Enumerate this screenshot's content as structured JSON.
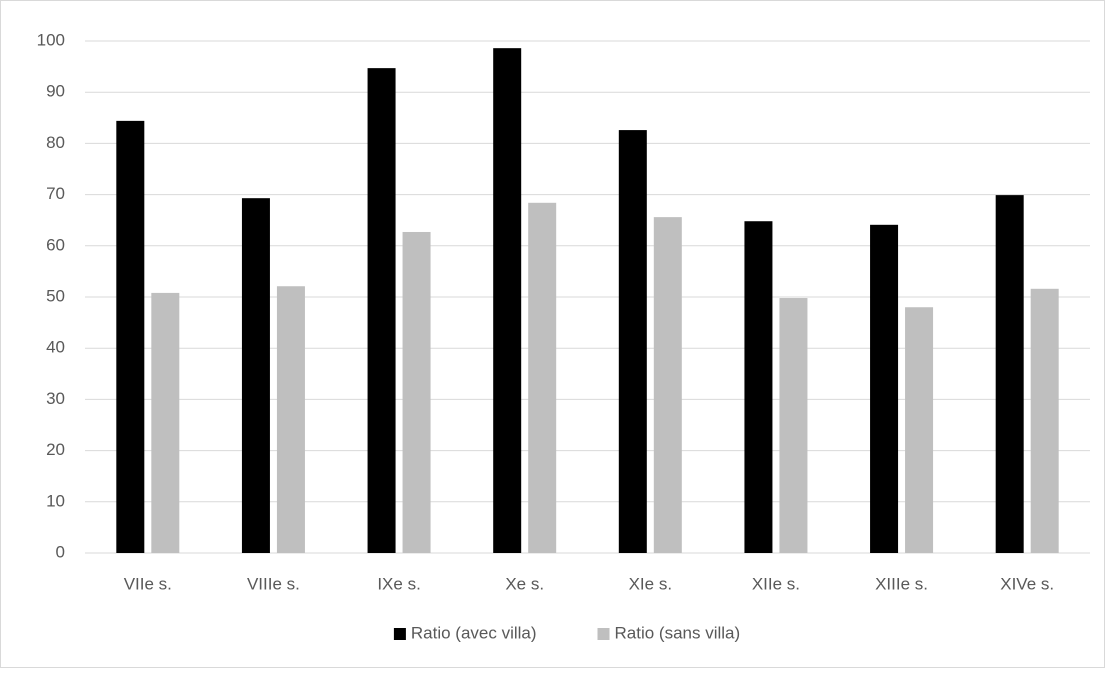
{
  "chart_data": {
    "type": "bar",
    "categories": [
      "VIIe s.",
      "VIIIe s.",
      "IXe s.",
      "Xe s.",
      "XIe s.",
      "XIIe s.",
      "XIIIe s.",
      "XIVe s."
    ],
    "series": [
      {
        "name": "Ratio (avec villa)",
        "color": "#000000",
        "values": [
          84.4,
          69.3,
          94.7,
          98.6,
          82.6,
          64.8,
          64.1,
          69.9
        ]
      },
      {
        "name": "Ratio (sans villa)",
        "color": "#bfbfbf",
        "values": [
          50.8,
          52.1,
          62.7,
          68.4,
          65.6,
          49.8,
          48.0,
          51.6
        ]
      }
    ],
    "ylim": [
      0,
      100
    ],
    "yticks": [
      0,
      10,
      20,
      30,
      40,
      50,
      60,
      70,
      80,
      90,
      100
    ],
    "grid": true,
    "legend": "bottom"
  }
}
